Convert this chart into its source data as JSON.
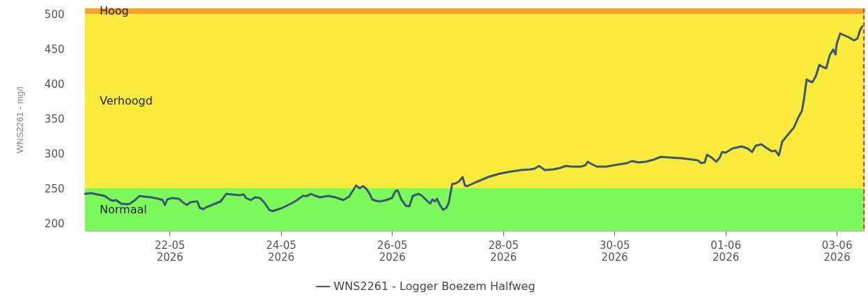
{
  "chart_data": {
    "type": "line",
    "ylabel": "WNS2261 - mg/l",
    "xlim": [
      "2026-05-20T11:30",
      "2026-06-03T12:00"
    ],
    "ylim": [
      189,
      508
    ],
    "xticks": [
      {
        "value": "2026-05-22",
        "label": "22-05 2026"
      },
      {
        "value": "2026-05-24",
        "label": "24-05 2026"
      },
      {
        "value": "2026-05-26",
        "label": "26-05 2026"
      },
      {
        "value": "2026-05-28",
        "label": "28-05 2026"
      },
      {
        "value": "2026-05-30",
        "label": "30-05 2026"
      },
      {
        "value": "2026-06-01",
        "label": "01-06 2026"
      },
      {
        "value": "2026-06-03",
        "label": "03-06 2026"
      }
    ],
    "yticks": [
      200,
      250,
      300,
      350,
      400,
      450,
      500
    ],
    "bands": [
      {
        "axis": "y",
        "from": 189,
        "to": 250,
        "label": "Normaal",
        "color": "#7cfa5c"
      },
      {
        "axis": "y",
        "from": 250,
        "to": 500,
        "label": "Verhoogd",
        "color": "#faeb3c"
      },
      {
        "axis": "y",
        "from": 500,
        "to": 508,
        "label": "Hoog",
        "color": "#f7a428"
      }
    ],
    "ref_lines": [
      {
        "axis": "x",
        "value": "2026-06-03T11:45",
        "color": "#c8402a",
        "line_style": "dashed"
      }
    ],
    "legend": "bottom",
    "series": [
      {
        "name": "WNS2261 - Logger Boezem Halfweg",
        "color": "#3a5670",
        "x": [
          "2026-05-20T11:30",
          "2026-05-20T14:00",
          "2026-05-20T17:00",
          "2026-05-20T20:00",
          "2026-05-20T22:00",
          "2026-05-20T23:30",
          "2026-05-21T01:00",
          "2026-05-21T03:00",
          "2026-05-21T05:30",
          "2026-05-21T07:00",
          "2026-05-21T09:00",
          "2026-05-21T11:00",
          "2026-05-21T13:00",
          "2026-05-21T16:00",
          "2026-05-21T19:00",
          "2026-05-21T21:00",
          "2026-05-21T22:00",
          "2026-05-21T23:00",
          "2026-05-22T01:00",
          "2026-05-22T04:00",
          "2026-05-22T06:00",
          "2026-05-22T07:30",
          "2026-05-22T09:00",
          "2026-05-22T11:00",
          "2026-05-22T12:00",
          "2026-05-22T13:00",
          "2026-05-22T14:30",
          "2026-05-22T16:00",
          "2026-05-22T19:00",
          "2026-05-22T22:00",
          "2026-05-23T00:30",
          "2026-05-23T03:00",
          "2026-05-23T06:00",
          "2026-05-23T08:00",
          "2026-05-23T09:00",
          "2026-05-23T11:00",
          "2026-05-23T13:00",
          "2026-05-23T15:00",
          "2026-05-23T17:00",
          "2026-05-23T19:00",
          "2026-05-23T20:30",
          "2026-05-23T22:00",
          "2026-05-24T00:00",
          "2026-05-24T02:00",
          "2026-05-24T05:00",
          "2026-05-24T07:00",
          "2026-05-24T09:30",
          "2026-05-24T11:30",
          "2026-05-24T13:00",
          "2026-05-24T15:00",
          "2026-05-24T17:00",
          "2026-05-24T20:30",
          "2026-05-24T23:30",
          "2026-05-25T03:00",
          "2026-05-25T05:30",
          "2026-05-25T07:00",
          "2026-05-25T08:30",
          "2026-05-25T10:00",
          "2026-05-25T11:30",
          "2026-05-25T13:00",
          "2026-05-25T14:30",
          "2026-05-25T15:30",
          "2026-05-25T17:00",
          "2026-05-25T18:30",
          "2026-05-25T21:30",
          "2026-05-26T00:00",
          "2026-05-26T01:30",
          "2026-05-26T02:30",
          "2026-05-26T04:00",
          "2026-05-26T06:00",
          "2026-05-26T07:30",
          "2026-05-26T09:00",
          "2026-05-26T11:30",
          "2026-05-26T13:00",
          "2026-05-26T14:30",
          "2026-05-26T16:30",
          "2026-05-26T17:30",
          "2026-05-26T18:30",
          "2026-05-26T19:30",
          "2026-05-26T20:30",
          "2026-05-26T22:00",
          "2026-05-26T23:30",
          "2026-05-27T00:30",
          "2026-05-27T02:00",
          "2026-05-27T03:30",
          "2026-05-27T05:00",
          "2026-05-27T06:30",
          "2026-05-27T07:30",
          "2026-05-27T08:30",
          "2026-05-27T12:30",
          "2026-05-27T17:30",
          "2026-05-27T22:30",
          "2026-05-28T03:30",
          "2026-05-28T07:30",
          "2026-05-28T11:30",
          "2026-05-28T13:30",
          "2026-05-28T15:30",
          "2026-05-28T18:00",
          "2026-05-28T21:30",
          "2026-05-29T00:30",
          "2026-05-29T03:00",
          "2026-05-29T05:30",
          "2026-05-29T09:30",
          "2026-05-29T11:30",
          "2026-05-29T12:30",
          "2026-05-29T14:00",
          "2026-05-29T16:30",
          "2026-05-29T20:30",
          "2026-05-30T01:30",
          "2026-05-30T05:30",
          "2026-05-30T07:30",
          "2026-05-30T10:30",
          "2026-05-30T13:30",
          "2026-05-30T17:00",
          "2026-05-30T20:00",
          "2026-05-31T00:00",
          "2026-05-31T05:00",
          "2026-05-31T10:00",
          "2026-05-31T12:00",
          "2026-05-31T13:30",
          "2026-05-31T15:00",
          "2026-05-31T16:00",
          "2026-05-31T18:00",
          "2026-05-31T20:00",
          "2026-05-31T21:30",
          "2026-05-31T22:30",
          "2026-06-01T00:00",
          "2026-06-01T03:00",
          "2026-06-01T07:00",
          "2026-06-01T09:30",
          "2026-06-01T11:30",
          "2026-06-01T13:00",
          "2026-06-01T15:30",
          "2026-06-01T18:00",
          "2026-06-01T20:00",
          "2026-06-01T21:30",
          "2026-06-01T23:00",
          "2026-06-02T00:30",
          "2026-06-02T03:00",
          "2026-06-02T05:30",
          "2026-06-02T07:30",
          "2026-06-02T09:00",
          "2026-06-02T10:00",
          "2026-06-02T11:00",
          "2026-06-02T12:00",
          "2026-06-02T13:30",
          "2026-06-02T15:00",
          "2026-06-02T16:30",
          "2026-06-02T18:00",
          "2026-06-02T19:30",
          "2026-06-02T21:00",
          "2026-06-02T22:30",
          "2026-06-02T23:30",
          "2026-06-03T00:00",
          "2026-06-03T01:30",
          "2026-06-03T03:30",
          "2026-06-03T05:30",
          "2026-06-03T07:30",
          "2026-06-03T09:00",
          "2026-06-03T10:00",
          "2026-06-03T11:00"
        ],
        "values": [
          242,
          243,
          241,
          239,
          234,
          232,
          233,
          228,
          227,
          228,
          233,
          239,
          238,
          237,
          235,
          233,
          226,
          234,
          236,
          235,
          229,
          226,
          230,
          231,
          231,
          222,
          220,
          223,
          227,
          231,
          242,
          241,
          240,
          241,
          236,
          233,
          237,
          236,
          229,
          219,
          217,
          219,
          221,
          224,
          229,
          233,
          239,
          239,
          242,
          239,
          237,
          239,
          237,
          233,
          238,
          246,
          254,
          250,
          253,
          249,
          241,
          234,
          232,
          231,
          233,
          236,
          246,
          247,
          234,
          225,
          224,
          239,
          242,
          239,
          234,
          228,
          234,
          231,
          235,
          227,
          219,
          222,
          229,
          256,
          257,
          260,
          266,
          254,
          253,
          259,
          266,
          271,
          274,
          276,
          277,
          278,
          282,
          276,
          277,
          279,
          282,
          281,
          281,
          283,
          288,
          285,
          281,
          281,
          284,
          286,
          289,
          287,
          288,
          291,
          295,
          294,
          293,
          291,
          290,
          286,
          287,
          298,
          294,
          288,
          294,
          302,
          301,
          307,
          310,
          307,
          302,
          311,
          313,
          307,
          303,
          304,
          297,
          317,
          327,
          337,
          352,
          361,
          381,
          406,
          404,
          402,
          411,
          427,
          424,
          422,
          441,
          449,
          442,
          457,
          472,
          469,
          466,
          462,
          465,
          476,
          482
        ]
      }
    ]
  }
}
